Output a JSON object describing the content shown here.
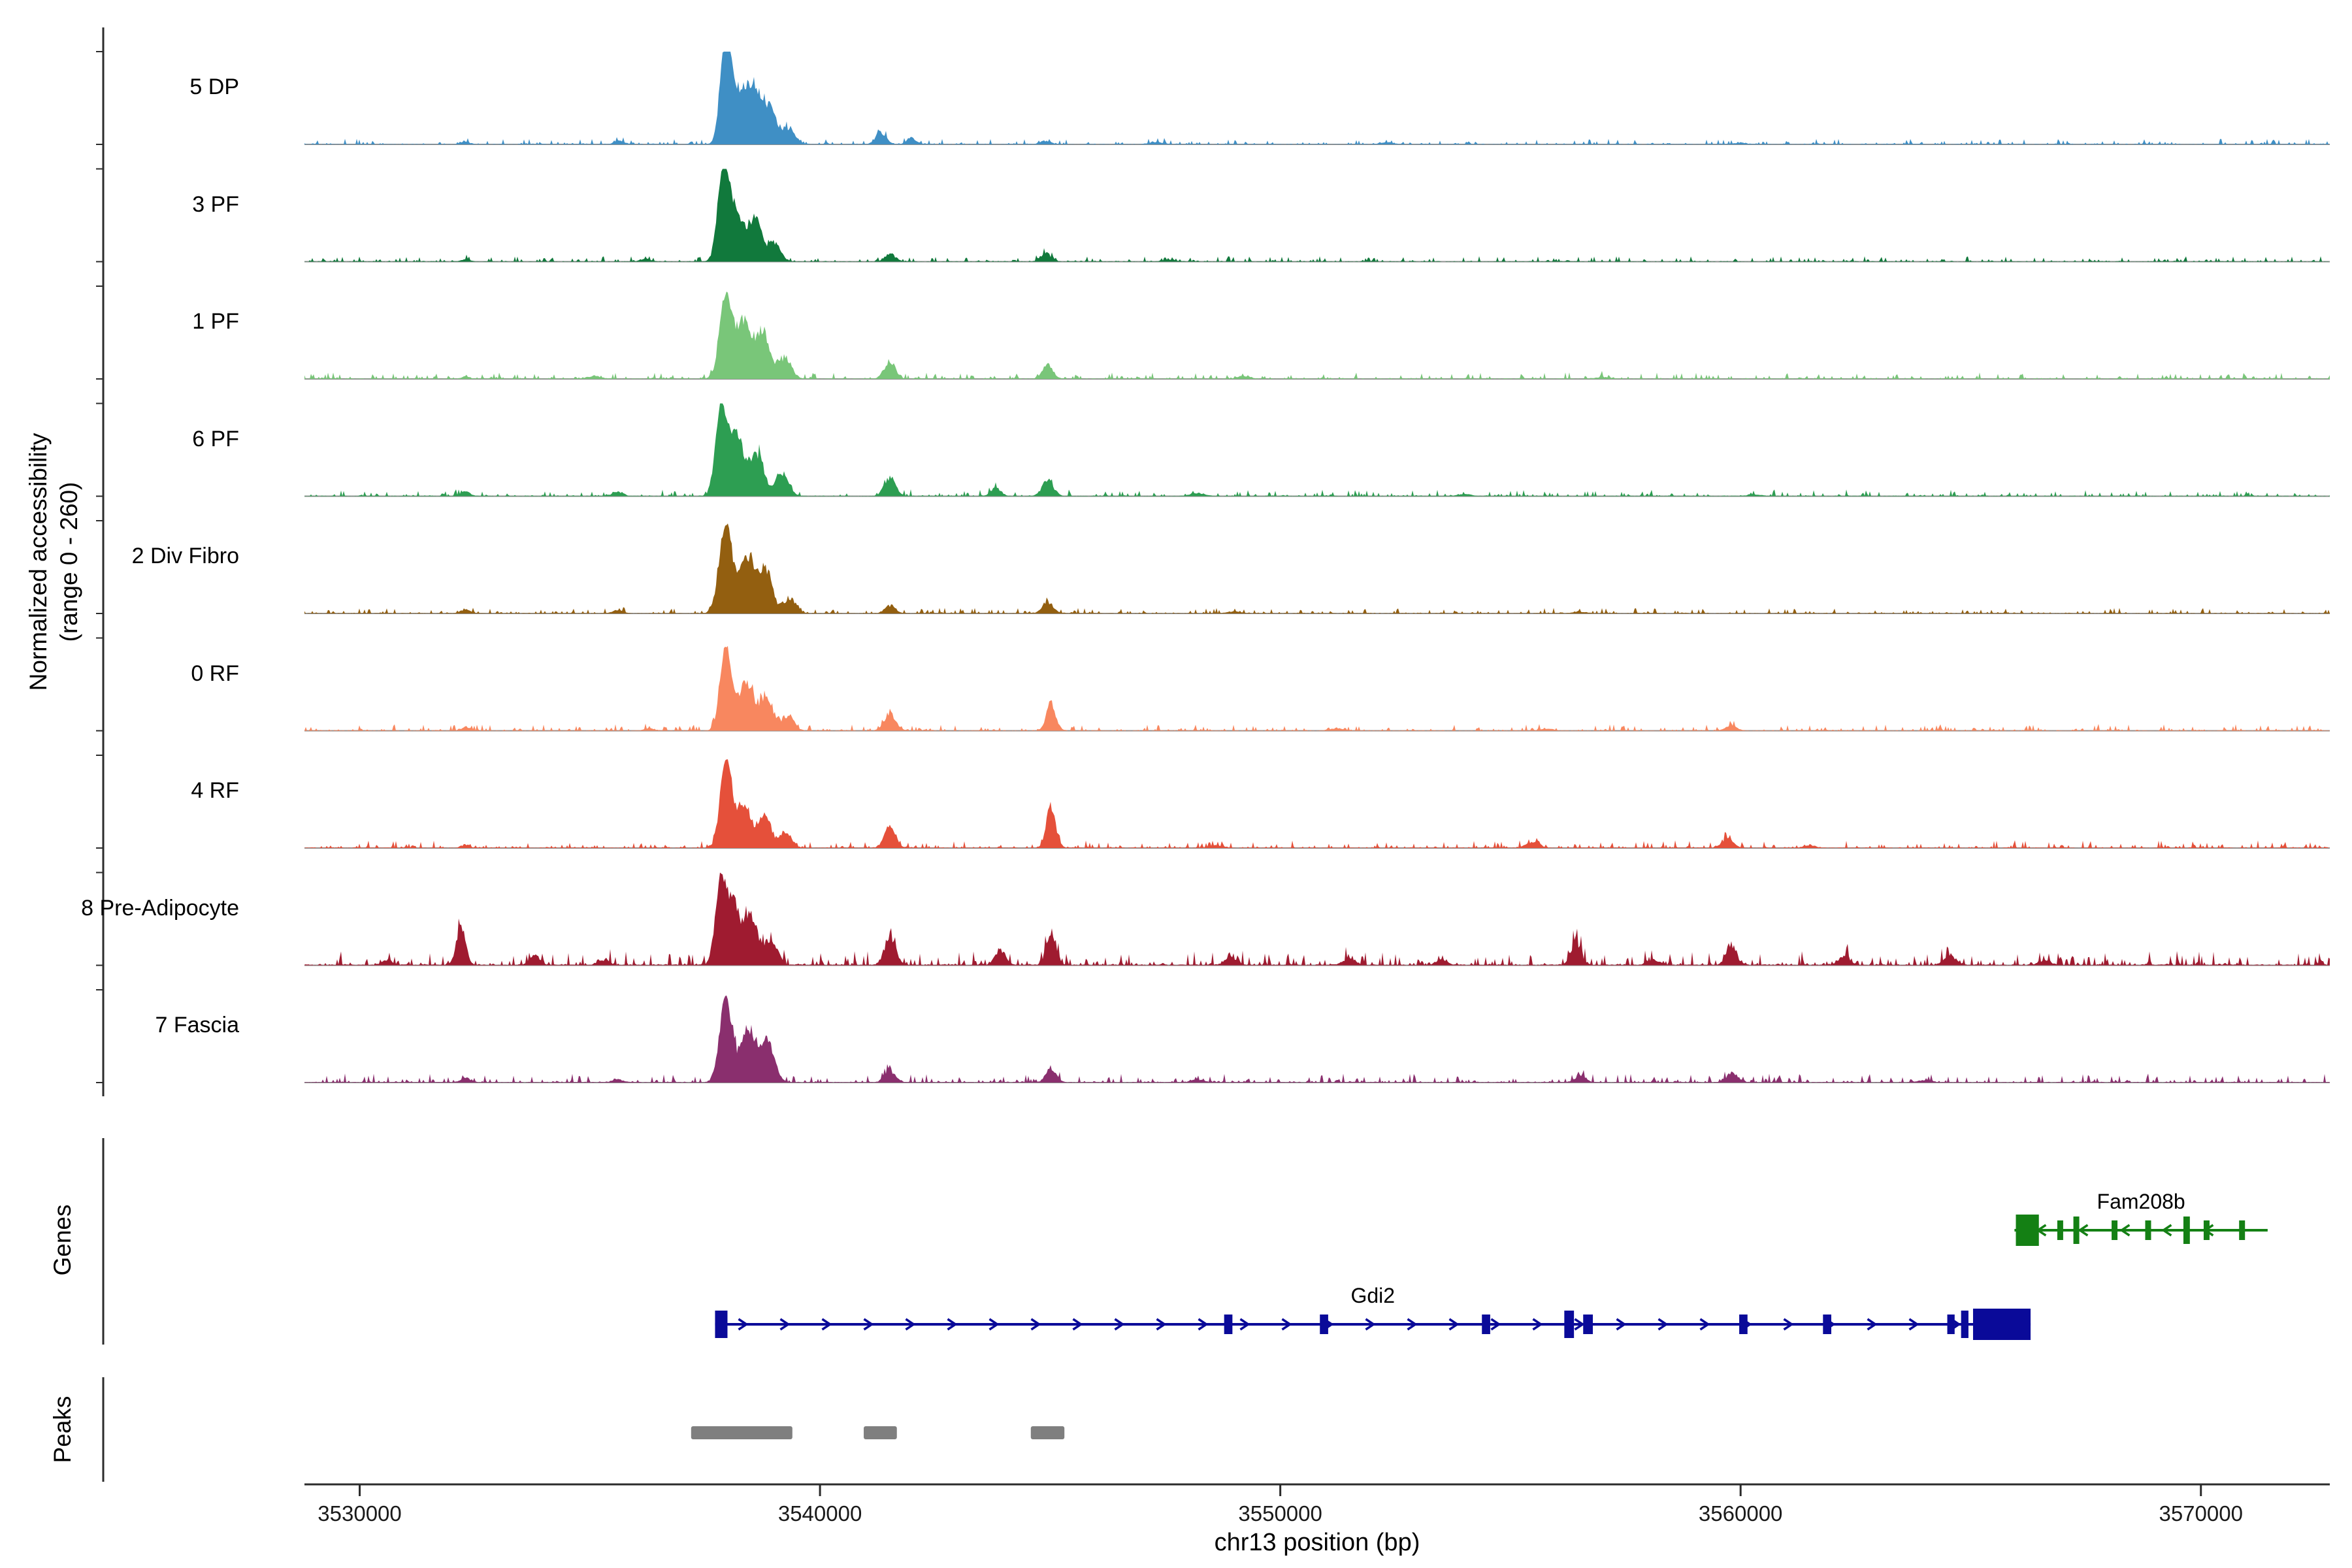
{
  "figure": {
    "background": "#ffffff",
    "axis_color": "#2b2b2b",
    "baseline_color": "#8f8f8f",
    "bracket_color": "#2b2b2b"
  },
  "axis": {
    "y_label_line1": "Normalized accessibility",
    "y_label_line2": "(range 0 - 260)",
    "x_label": "chr13 position (bp)",
    "genes_label": "Genes",
    "peaks_label": "Peaks"
  },
  "chart_data": {
    "type": "area",
    "title": "",
    "xlabel": "chr13 position (bp)",
    "ylabel": "Normalized accessibility (range 0 - 260)",
    "x_range_bp": [
      3528800,
      3572800
    ],
    "x_ticks": [
      3530000,
      3540000,
      3550000,
      3560000,
      3570000
    ],
    "track_y_range": [
      0,
      260
    ],
    "tracks": [
      {
        "label": "5 DP",
        "color": "#3f8fc5",
        "noise": 5,
        "peaks": [
          [
            3537950,
            110,
            252
          ],
          [
            3538180,
            190,
            135
          ],
          [
            3538560,
            170,
            148
          ],
          [
            3538920,
            150,
            88
          ],
          [
            3539320,
            140,
            42
          ],
          [
            3541320,
            110,
            34
          ],
          [
            3541980,
            100,
            18
          ],
          [
            3535650,
            110,
            10
          ],
          [
            3544900,
            110,
            9
          ],
          [
            3532300,
            90,
            7
          ],
          [
            3547300,
            140,
            6
          ],
          [
            3552300,
            140,
            5
          ],
          [
            3560000,
            140,
            4
          ]
        ]
      },
      {
        "label": "3 PF",
        "color": "#11793c",
        "noise": 5,
        "peaks": [
          [
            3537900,
            120,
            252
          ],
          [
            3538180,
            170,
            130
          ],
          [
            3538600,
            150,
            112
          ],
          [
            3539020,
            130,
            52
          ],
          [
            3541520,
            110,
            20
          ],
          [
            3544900,
            110,
            24
          ],
          [
            3532300,
            90,
            6
          ],
          [
            3547600,
            140,
            5
          ],
          [
            3536200,
            100,
            8
          ]
        ]
      },
      {
        "label": "1 PF",
        "color": "#79c679",
        "noise": 6,
        "peaks": [
          [
            3537950,
            130,
            232
          ],
          [
            3538340,
            170,
            158
          ],
          [
            3538760,
            150,
            128
          ],
          [
            3539240,
            140,
            58
          ],
          [
            3541520,
            120,
            48
          ],
          [
            3544950,
            110,
            40
          ],
          [
            3535100,
            130,
            8
          ],
          [
            3549200,
            140,
            7
          ],
          [
            3532300,
            90,
            6
          ],
          [
            3557000,
            140,
            5
          ]
        ]
      },
      {
        "label": "6 PF",
        "color": "#2d9e52",
        "noise": 6,
        "peaks": [
          [
            3537850,
            120,
            242
          ],
          [
            3538180,
            160,
            168
          ],
          [
            3538640,
            150,
            118
          ],
          [
            3539180,
            140,
            66
          ],
          [
            3541520,
            120,
            52
          ],
          [
            3543820,
            110,
            22
          ],
          [
            3544950,
            120,
            44
          ],
          [
            3532300,
            100,
            13
          ],
          [
            3535600,
            120,
            11
          ],
          [
            3548200,
            160,
            7
          ],
          [
            3554000,
            150,
            5
          ],
          [
            3560300,
            140,
            5
          ]
        ]
      },
      {
        "label": "2 Div Fibro",
        "color": "#935f10",
        "noise": 5,
        "peaks": [
          [
            3537950,
            140,
            250
          ],
          [
            3538420,
            170,
            148
          ],
          [
            3538820,
            150,
            115
          ],
          [
            3539340,
            130,
            42
          ],
          [
            3541520,
            110,
            22
          ],
          [
            3544950,
            120,
            30
          ],
          [
            3532300,
            100,
            11
          ],
          [
            3535600,
            110,
            8
          ],
          [
            3549000,
            150,
            5
          ],
          [
            3556500,
            140,
            4
          ]
        ]
      },
      {
        "label": "0 RF",
        "color": "#f8875f",
        "noise": 6,
        "peaks": [
          [
            3537950,
            120,
            242
          ],
          [
            3538400,
            160,
            138
          ],
          [
            3538840,
            140,
            96
          ],
          [
            3539300,
            130,
            42
          ],
          [
            3541520,
            120,
            48
          ],
          [
            3545020,
            100,
            78
          ],
          [
            3532300,
            90,
            11
          ],
          [
            3559800,
            110,
            17
          ],
          [
            3551200,
            140,
            6
          ],
          [
            3536300,
            100,
            7
          ],
          [
            3555800,
            130,
            5
          ]
        ]
      },
      {
        "label": "4 RF",
        "color": "#e5503a",
        "noise": 7,
        "peaks": [
          [
            3537950,
            120,
            248
          ],
          [
            3538340,
            160,
            128
          ],
          [
            3538800,
            140,
            86
          ],
          [
            3539260,
            130,
            40
          ],
          [
            3541520,
            120,
            58
          ],
          [
            3545020,
            100,
            112
          ],
          [
            3555480,
            130,
            16
          ],
          [
            3559720,
            120,
            28
          ],
          [
            3532300,
            90,
            9
          ],
          [
            3548600,
            140,
            7
          ],
          [
            3561500,
            130,
            6
          ]
        ]
      },
      {
        "label": "8 Pre-Adipocyte",
        "color": "#9f1b30",
        "noise": 13,
        "peaks": [
          [
            3537830,
            110,
            212
          ],
          [
            3538100,
            150,
            175
          ],
          [
            3538500,
            140,
            135
          ],
          [
            3538940,
            130,
            76
          ],
          [
            3532200,
            100,
            108
          ],
          [
            3533800,
            110,
            28
          ],
          [
            3541520,
            120,
            78
          ],
          [
            3543920,
            110,
            42
          ],
          [
            3545020,
            100,
            96
          ],
          [
            3548920,
            120,
            24
          ],
          [
            3551500,
            130,
            18
          ],
          [
            3553500,
            120,
            14
          ],
          [
            3556420,
            110,
            66
          ],
          [
            3558100,
            120,
            16
          ],
          [
            3559800,
            110,
            56
          ],
          [
            3562250,
            120,
            22
          ],
          [
            3564550,
            120,
            28
          ],
          [
            3530600,
            110,
            13
          ],
          [
            3566600,
            130,
            12
          ],
          [
            3535300,
            110,
            14
          ]
        ]
      },
      {
        "label": "7 Fascia",
        "color": "#8a2f6e",
        "noise": 8,
        "peaks": [
          [
            3537950,
            130,
            238
          ],
          [
            3538440,
            170,
            148
          ],
          [
            3538860,
            150,
            106
          ],
          [
            3541520,
            120,
            32
          ],
          [
            3545020,
            110,
            38
          ],
          [
            3532300,
            100,
            13
          ],
          [
            3548200,
            140,
            8
          ],
          [
            3556520,
            120,
            18
          ],
          [
            3559820,
            120,
            26
          ],
          [
            3535600,
            110,
            9
          ],
          [
            3564000,
            140,
            6
          ]
        ]
      }
    ],
    "genes": [
      {
        "name": "Fam208b",
        "strand": "-",
        "color": "#148014",
        "row": 0,
        "start": 3565950,
        "end": 3571450,
        "exons": [
          [
            3565980,
            3566480,
            "big"
          ],
          [
            3566880,
            3566990,
            "med"
          ],
          [
            3567230,
            3567340,
            "tall"
          ],
          [
            3568060,
            3568170,
            "med"
          ],
          [
            3568790,
            3568900,
            "med"
          ],
          [
            3569620,
            3569760,
            "tall"
          ],
          [
            3570060,
            3570170,
            "med"
          ],
          [
            3570830,
            3570940,
            "med"
          ]
        ]
      },
      {
        "name": "Gdi2",
        "strand": "+",
        "color": "#0a0a99",
        "row": 1,
        "start": 3537720,
        "end": 3566300,
        "exons": [
          [
            3537720,
            3537990,
            "tall"
          ],
          [
            3548780,
            3548960,
            "med"
          ],
          [
            3550860,
            3551040,
            "med"
          ],
          [
            3554380,
            3554560,
            "med"
          ],
          [
            3556170,
            3556380,
            "tall"
          ],
          [
            3556580,
            3556790,
            "med"
          ],
          [
            3559970,
            3560150,
            "med"
          ],
          [
            3561790,
            3561970,
            "med"
          ],
          [
            3564490,
            3564650,
            "med"
          ],
          [
            3564790,
            3564950,
            "tall"
          ],
          [
            3565050,
            3566300,
            "big"
          ]
        ]
      }
    ],
    "peak_regions": {
      "color": "#7f7f7f",
      "regions": [
        [
          3537200,
          3539400
        ],
        [
          3540950,
          3541670
        ],
        [
          3544580,
          3545310
        ]
      ]
    }
  }
}
